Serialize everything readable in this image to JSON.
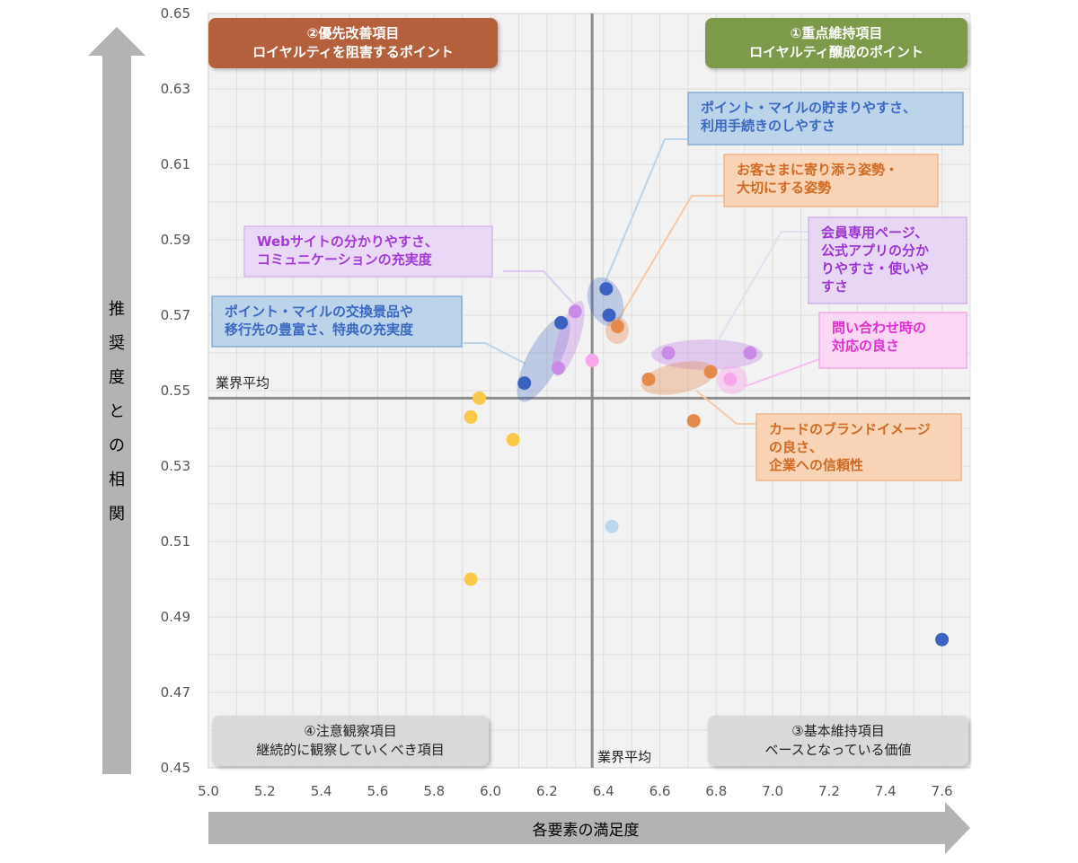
{
  "chart_data": {
    "type": "scatter",
    "xlabel": "各要素の満足度",
    "ylabel": "推奨度との相関",
    "xlim": [
      5.0,
      7.7
    ],
    "ylim": [
      0.45,
      0.65
    ],
    "x_ticks": [
      "5.0",
      "5.2",
      "5.4",
      "5.6",
      "5.8",
      "6.0",
      "6.2",
      "6.4",
      "6.6",
      "6.8",
      "7.0",
      "7.2",
      "7.4",
      "7.6"
    ],
    "y_ticks": [
      "0.65",
      "0.63",
      "0.61",
      "0.59",
      "0.57",
      "0.55",
      "0.53",
      "0.51",
      "0.49",
      "0.47",
      "0.45"
    ],
    "grid": true,
    "avg_label": "業界平均",
    "avg_x": 6.36,
    "avg_y": 0.548,
    "quadrants": [
      {
        "line1": "②優先改善項目",
        "line2": "ロイヤルティを阻害するポイント",
        "color": "#b5603c"
      },
      {
        "line1": "①重点維持項目",
        "line2": "ロイヤルティ醸成のポイント",
        "color": "#7c9a4a"
      },
      {
        "line1": "④注意観察項目",
        "line2": "継続的に観察していくべき項目",
        "color": "#d9d9d9"
      },
      {
        "line1": "③基本維持項目",
        "line2": "ベースとなっている価値",
        "color": "#d9d9d9"
      }
    ],
    "series": [
      {
        "color": "#3b62c0",
        "points": [
          [
            6.41,
            0.577
          ],
          [
            6.42,
            0.57
          ],
          [
            6.25,
            0.568
          ],
          [
            6.12,
            0.552
          ],
          [
            7.6,
            0.484
          ]
        ]
      },
      {
        "color": "#e68a4b",
        "points": [
          [
            6.45,
            0.567
          ],
          [
            6.56,
            0.553
          ],
          [
            6.78,
            0.555
          ],
          [
            6.72,
            0.542
          ]
        ]
      },
      {
        "color": "#c98be6",
        "points": [
          [
            6.3,
            0.571
          ],
          [
            6.24,
            0.556
          ],
          [
            6.63,
            0.56
          ],
          [
            6.92,
            0.56
          ]
        ]
      },
      {
        "color": "#f7a8ea",
        "points": [
          [
            6.85,
            0.553
          ],
          [
            6.36,
            0.558
          ]
        ]
      },
      {
        "color": "#bcd6ee",
        "points": [
          [
            6.43,
            0.514
          ]
        ]
      },
      {
        "color": "#f9c948",
        "points": [
          [
            5.96,
            0.548
          ],
          [
            5.93,
            0.543
          ],
          [
            6.08,
            0.537
          ],
          [
            5.93,
            0.5
          ]
        ]
      }
    ],
    "annotations": [
      {
        "lines": [
          "ポイント・マイルの貯まりやすさ、",
          "利用手続きのしやすさ"
        ],
        "text_color": "#3b68c0",
        "bg": "#bcd4ea",
        "border": "#86add6"
      },
      {
        "lines": [
          "お客さまに寄り添う姿勢・",
          "大切にする姿勢"
        ],
        "text_color": "#d06a25",
        "bg": "#f8d3b6",
        "border": "#f0b48a"
      },
      {
        "lines": [
          "会員専用ページ、",
          "公式アプリの分か",
          "りやすさ・使いや",
          "すさ"
        ],
        "text_color": "#9b35d0",
        "bg": "#e8d6f5",
        "border": "#d2b3ec"
      },
      {
        "lines": [
          "問い合わせ時の",
          "対応の良さ"
        ],
        "text_color": "#e030d0",
        "bg": "#fbd6f5",
        "border": "#f2a9e6"
      },
      {
        "lines": [
          "Webサイトの分かりやすさ、",
          "コミュニケーションの充実度"
        ],
        "text_color": "#a43ad6",
        "bg": "#ead8f7",
        "border": "#d6b8f0"
      },
      {
        "lines": [
          "ポイント・マイルの交換景品や",
          "移行先の豊富さ、特典の充実度"
        ],
        "text_color": "#3b68c0",
        "bg": "#bcd4ea",
        "border": "#86add6"
      },
      {
        "lines": [
          "カードのブランドイメージ",
          "の良さ、",
          "企業への信頼性"
        ],
        "text_color": "#d06a25",
        "bg": "#f8d3b6",
        "border": "#f0b48a"
      }
    ]
  }
}
